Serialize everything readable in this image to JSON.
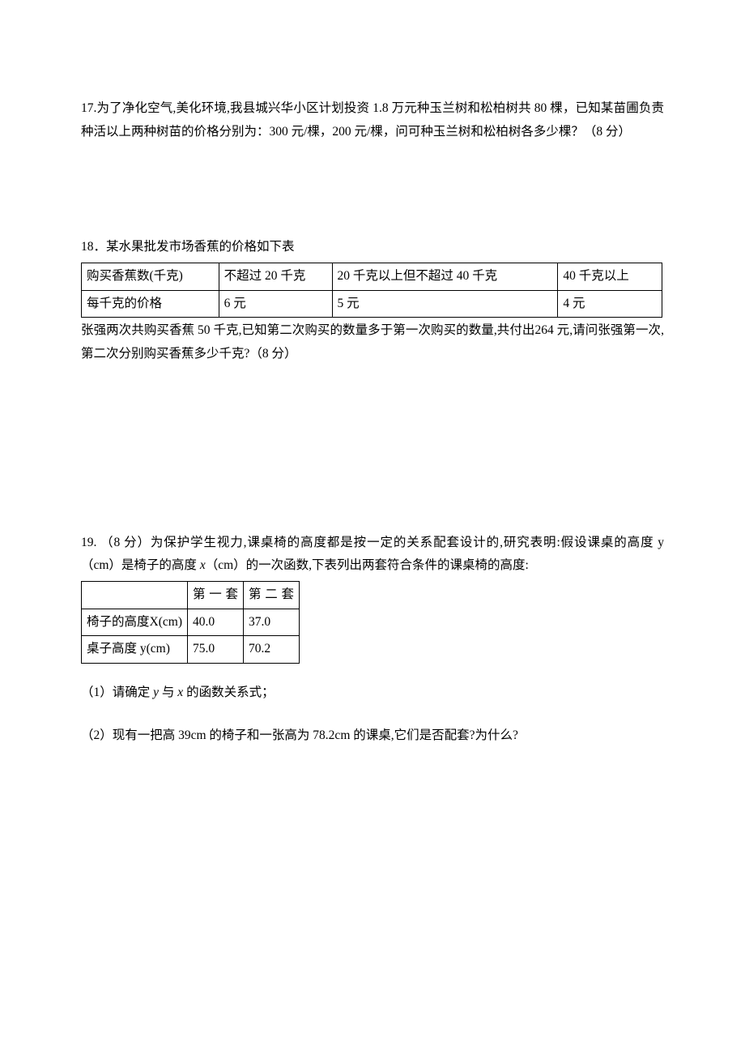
{
  "q17": {
    "text": "17.为了净化空气,美化环境,我县城兴华小区计划投资 1.8 万元种玉兰树和松柏树共 80 棵，已知某苗圃负责种活以上两种树苗的价格分别为：300 元/棵，200 元/棵，问可种玉兰树和松柏树各多少棵？（8 分）"
  },
  "q18": {
    "intro": "18．某水果批发市场香蕉的价格如下表",
    "table": {
      "r1c1": "购买香蕉数(千克)",
      "r1c2": "不超过 20 千克",
      "r1c3": "20 千克以上但不超过 40 千克",
      "r1c4": "40 千克以上",
      "r2c1": "每千克的价格",
      "r2c2": "6 元",
      "r2c3": "5 元",
      "r2c4": "4 元"
    },
    "body": "张强两次共购买香蕉 50 千克,已知第二次购买的数量多于第一次购买的数量,共付出264 元,请问张强第一次,第二次分别购买香蕉多少千克?（8 分）"
  },
  "q19": {
    "intro_a": "19. （8 分）为保护学生视力,课桌椅的高度都是按一定的关系配套设计的,研究表明:假设课桌的高度 y（cm）是椅子的高度 ",
    "intro_var": "x",
    "intro_b": "（cm）的一次函数,下表列出两套符合条件的课桌椅的高度:",
    "table": {
      "r1c1": "",
      "r1c2": "第一套",
      "r1c3": "第二套",
      "r2c1": "椅子的高度X(cm)",
      "r2c2": "40.0",
      "r2c3": "37.0",
      "r3c1": "桌子高度 y(cm)",
      "r3c2": "75.0",
      "r3c3": "70.2"
    },
    "part1_a": "（1）请确定 ",
    "part1_y": "y",
    "part1_b": " 与 ",
    "part1_x": "x",
    "part1_c": " 的函数关系式；",
    "part2": "（2）现有一把高 39cm 的椅子和一张高为 78.2cm 的课桌,它们是否配套?为什么?"
  }
}
